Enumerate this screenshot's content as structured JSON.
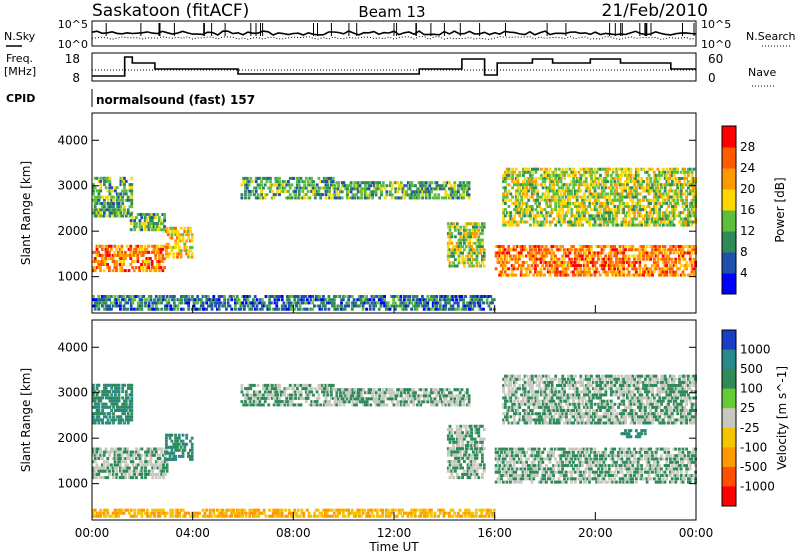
{
  "header": {
    "station": "Saskatoon (fitACF)",
    "beam": "Beam 13",
    "date": "21/Feb/2010"
  },
  "noise_panel": {
    "left_label": "N.Sky",
    "left_ticks": [
      "10^5",
      "10^0"
    ],
    "right_label": "N.Search",
    "right_ticks": [
      "10^5",
      "10^0"
    ]
  },
  "freq_panel": {
    "left_label_line1": "Freq.",
    "left_label_line2": "[MHz]",
    "left_ticks": [
      "18",
      "8"
    ],
    "right_label": "Nave",
    "right_ticks": [
      "60",
      "0"
    ]
  },
  "cpid": {
    "label": "CPID",
    "value": "normalsound (fast) 157"
  },
  "colors": {
    "power_scale": [
      "#0000ff",
      "#1f50ad",
      "#2e8b57",
      "#5bbf3c",
      "#ffd700",
      "#ff9900",
      "#ff5a00",
      "#ff0000"
    ],
    "velocity_scale": [
      "#1a3ec4",
      "#2a8a8a",
      "#2e8b57",
      "#66cc33",
      "#c8c8c0",
      "#f5c400",
      "#ff9900",
      "#ff5000",
      "#ff0000"
    ]
  },
  "chart_data": [
    {
      "type": "heatmap",
      "name": "power",
      "ylabel": "Slant Range [km]",
      "yticks": [
        "1000",
        "2000",
        "3000",
        "4000"
      ],
      "ylim": [
        200,
        4600
      ],
      "colorbar_label": "Power [dB]",
      "colorbar_ticks": [
        "4",
        "8",
        "12",
        "16",
        "20",
        "24",
        "28"
      ],
      "colorbar_range": [
        0,
        32
      ],
      "regions": [
        {
          "t": [
            0.0,
            2.9
          ],
          "r": [
            1100,
            1700
          ],
          "level": 24
        },
        {
          "t": [
            0.0,
            1.6
          ],
          "r": [
            2300,
            3200
          ],
          "level": 12
        },
        {
          "t": [
            1.5,
            2.9
          ],
          "r": [
            2000,
            2400
          ],
          "level": 12
        },
        {
          "t": [
            2.9,
            4.0
          ],
          "r": [
            1400,
            2100
          ],
          "level": 20
        },
        {
          "t": [
            5.9,
            9.6
          ],
          "r": [
            2700,
            3200
          ],
          "level": 12
        },
        {
          "t": [
            9.6,
            15.0
          ],
          "r": [
            2700,
            3100
          ],
          "level": 12
        },
        {
          "t": [
            14.1,
            15.6
          ],
          "r": [
            1200,
            2200
          ],
          "level": 16
        },
        {
          "t": [
            16.0,
            24.0
          ],
          "r": [
            1000,
            1700
          ],
          "level": 24
        },
        {
          "t": [
            16.3,
            24.0
          ],
          "r": [
            2100,
            3400
          ],
          "level": 16
        },
        {
          "t": [
            0.0,
            16.0
          ],
          "r": [
            250,
            600
          ],
          "level": 8
        }
      ]
    },
    {
      "type": "heatmap",
      "name": "velocity",
      "ylabel": "Slant Range [km]",
      "yticks": [
        "1000",
        "2000",
        "3000",
        "4000"
      ],
      "ylim": [
        200,
        4600
      ],
      "xlabel": "Time UT",
      "xticks": [
        "00:00",
        "04:00",
        "08:00",
        "12:00",
        "16:00",
        "20:00",
        "00:00"
      ],
      "xlim": [
        0,
        24
      ],
      "colorbar_label": "Velocity [m s^-1]",
      "colorbar_ticks": [
        "1000",
        "500",
        "100",
        "25",
        "-25",
        "-100",
        "-500",
        "-1000"
      ],
      "regions": [
        {
          "t": [
            0.0,
            3.0
          ],
          "r": [
            1100,
            1800
          ],
          "level": 25
        },
        {
          "t": [
            0.0,
            1.6
          ],
          "r": [
            2300,
            3200
          ],
          "level": 100
        },
        {
          "t": [
            2.9,
            4.0
          ],
          "r": [
            1500,
            2100
          ],
          "level": 100
        },
        {
          "t": [
            5.9,
            9.6
          ],
          "r": [
            2700,
            3200
          ],
          "level": 25
        },
        {
          "t": [
            9.6,
            15.0
          ],
          "r": [
            2700,
            3100
          ],
          "level": 25
        },
        {
          "t": [
            14.1,
            15.6
          ],
          "r": [
            1100,
            2300
          ],
          "level": 25
        },
        {
          "t": [
            16.0,
            24.0
          ],
          "r": [
            1000,
            1800
          ],
          "level": 25
        },
        {
          "t": [
            16.3,
            24.0
          ],
          "r": [
            2300,
            3400
          ],
          "level": 25
        },
        {
          "t": [
            21.0,
            22.0
          ],
          "r": [
            2000,
            2200
          ],
          "level": 100
        },
        {
          "t": [
            0.0,
            16.0
          ],
          "r": [
            250,
            450
          ],
          "level": -100
        }
      ]
    }
  ]
}
